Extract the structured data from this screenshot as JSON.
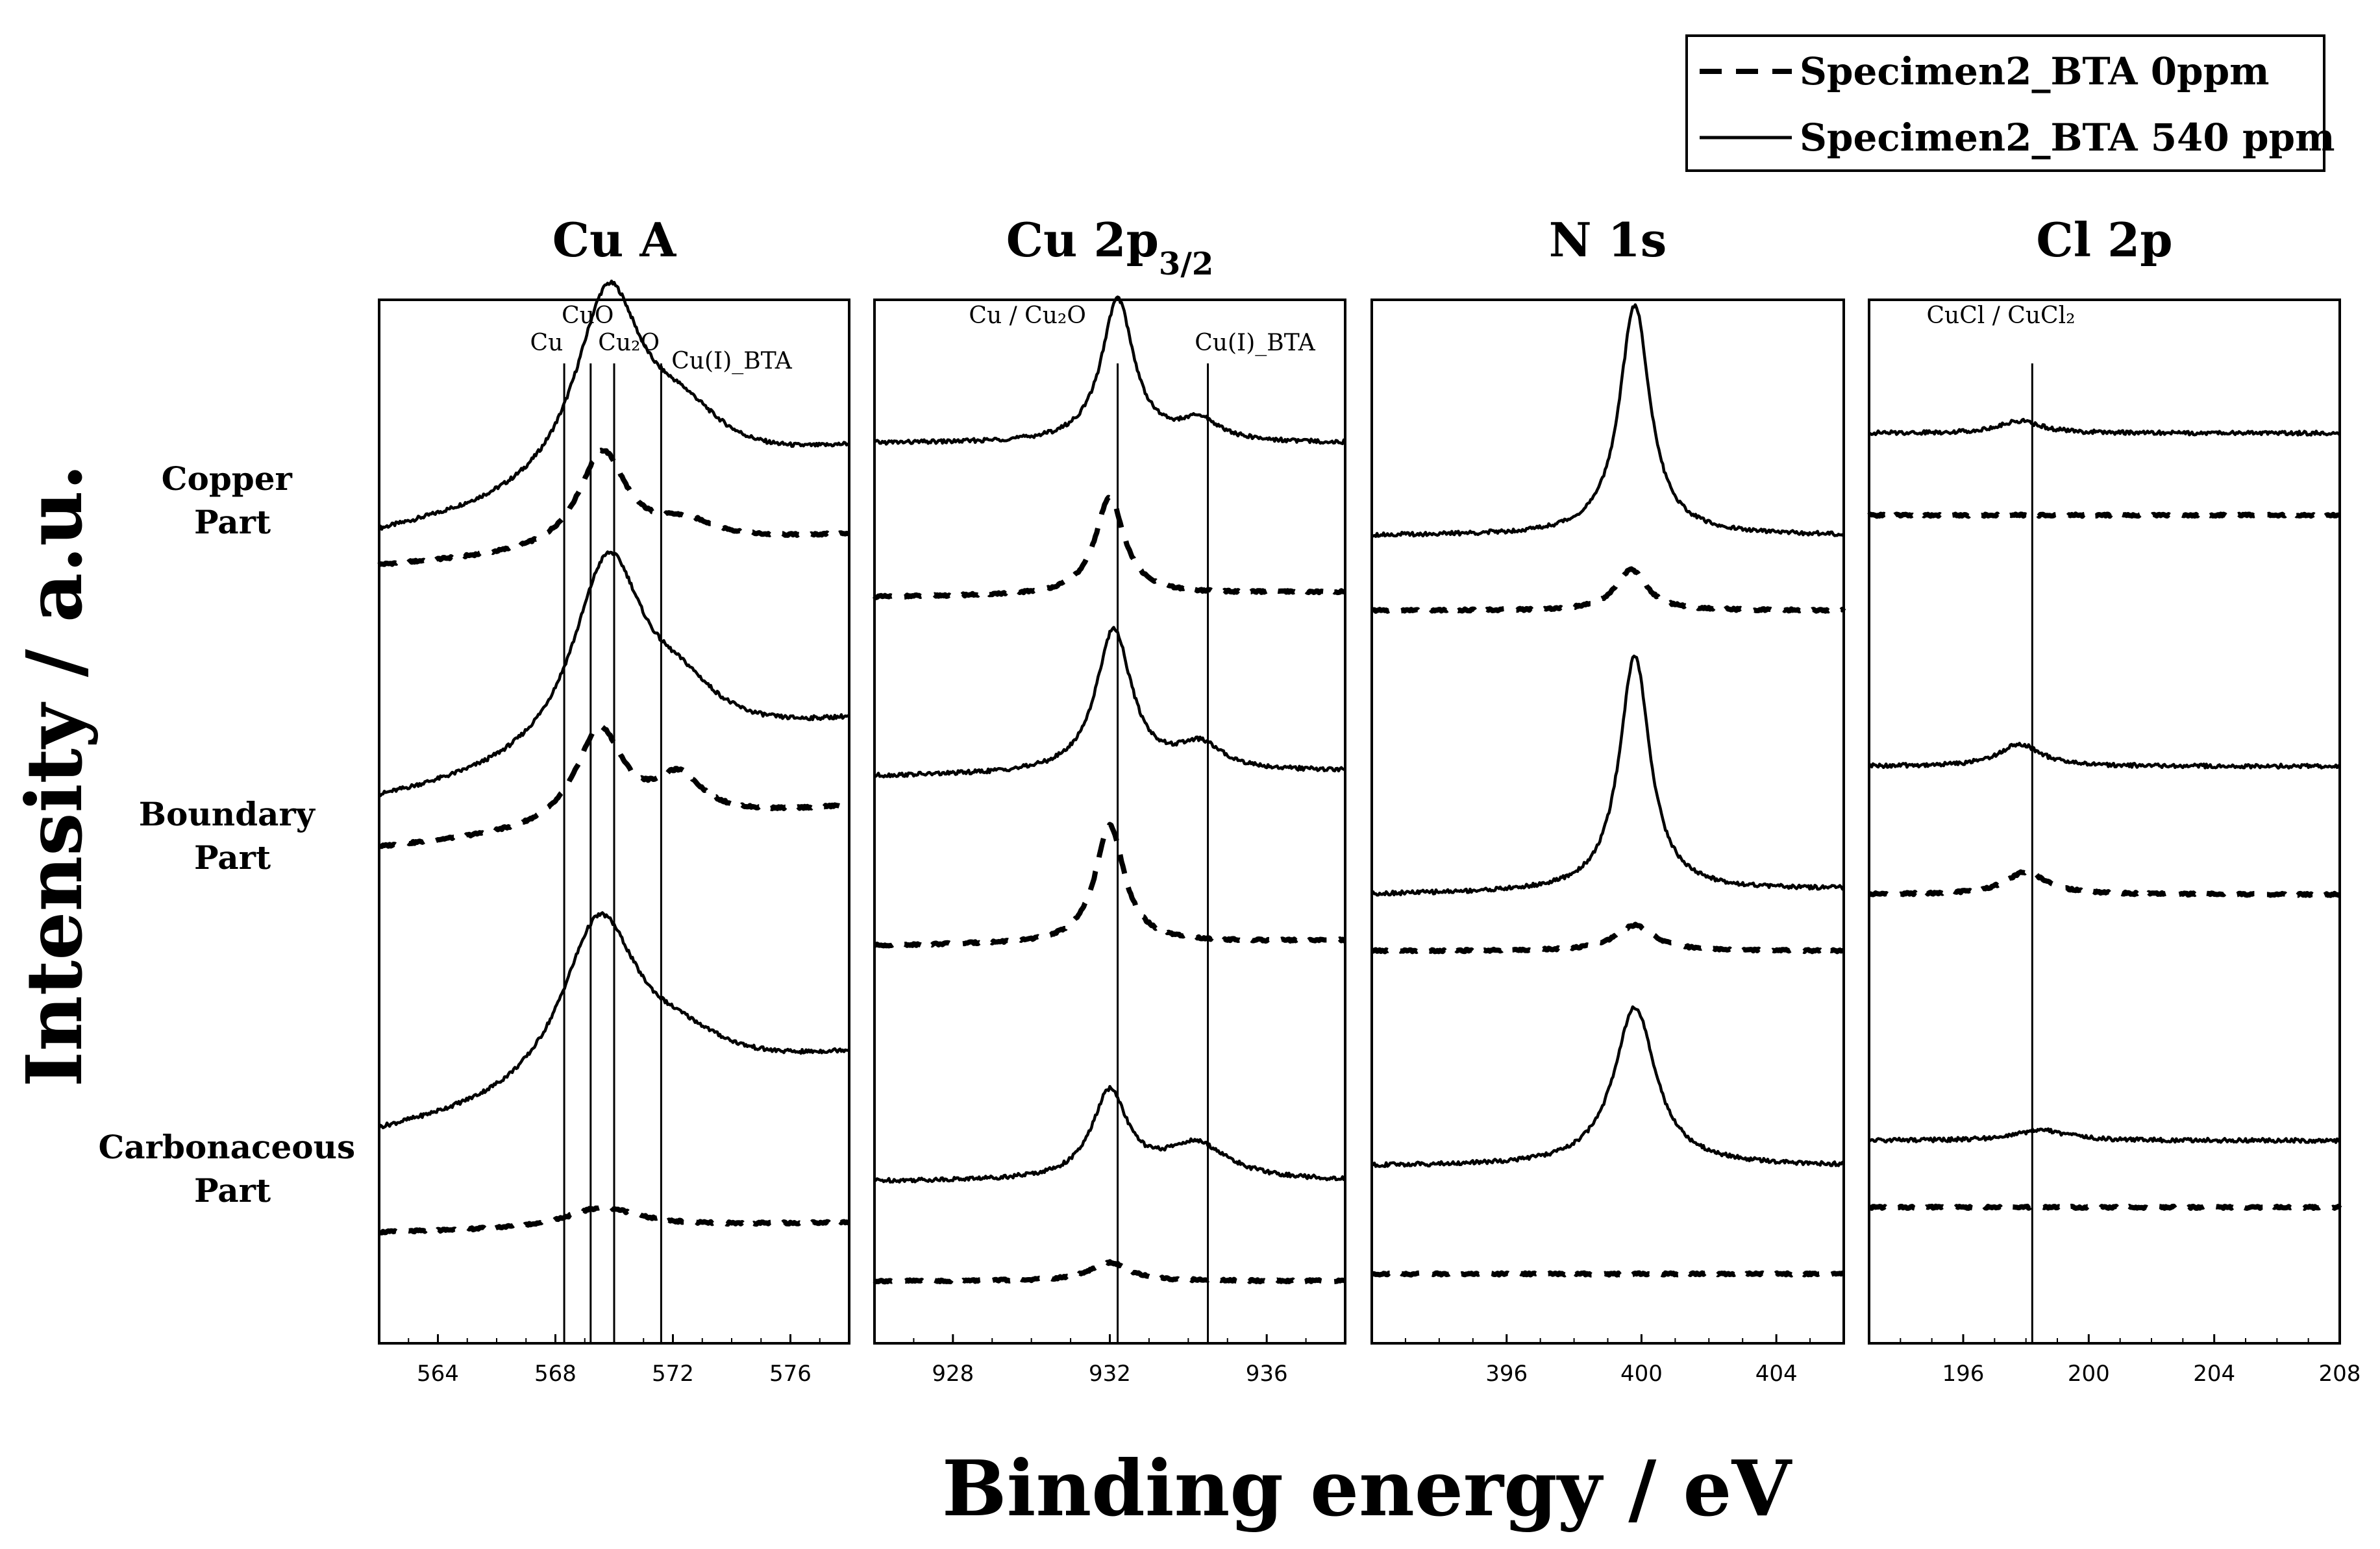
{
  "chart_data": {
    "type": "line",
    "title": "",
    "ylabel": "Intensity / a.u.",
    "xlabel": "Binding energy / eV",
    "legend": {
      "placement": "top-right",
      "entries": [
        {
          "name": "Specimen2_BTA 0ppm",
          "style": "dashed"
        },
        {
          "name": "Specimen2_BTA 540 ppm",
          "style": "solid"
        }
      ]
    },
    "rows": [
      {
        "label_line1": "Copper",
        "label_line2": "Part"
      },
      {
        "label_line1": "Boundary",
        "label_line2": "Part"
      },
      {
        "label_line1": "Carbonaceous",
        "label_line2": "Part"
      }
    ],
    "panels": [
      {
        "title_main": "Cu A",
        "title_sub": "",
        "xlim": [
          562,
          578
        ],
        "ticks": [
          564,
          568,
          572,
          576
        ],
        "ref_lines": [
          568.3,
          569.2,
          570.0,
          571.6
        ],
        "ref_labels": [
          {
            "text": "Cu",
            "x": 567.7,
            "tier": 2
          },
          {
            "text": "CuO",
            "x": 569.1,
            "tier": 1
          },
          {
            "text": "Cu₂O",
            "x": 570.5,
            "tier": 2
          },
          {
            "text": "Cu(I)_BTA",
            "x": 574.0,
            "tier": 3
          }
        ],
        "series": [
          {
            "row": 0,
            "style": "solid",
            "baseline": 0.775,
            "bg_end": 0.855,
            "peaks": [
              {
                "center": 569.8,
                "height": 0.19,
                "width": 1.4
              },
              {
                "center": 572.3,
                "height": 0.05,
                "width": 1.8
              }
            ]
          },
          {
            "row": 0,
            "style": "dashed",
            "baseline": 0.745,
            "bg_end": 0.775,
            "peaks": [
              {
                "center": 569.6,
                "height": 0.095,
                "width": 1.0
              },
              {
                "center": 572.4,
                "height": 0.02,
                "width": 1.4
              }
            ]
          },
          {
            "row": 1,
            "style": "solid",
            "baseline": 0.515,
            "bg_end": 0.59,
            "peaks": [
              {
                "center": 569.8,
                "height": 0.195,
                "width": 1.5
              },
              {
                "center": 572.3,
                "height": 0.04,
                "width": 1.6
              }
            ]
          },
          {
            "row": 1,
            "style": "dashed",
            "baseline": 0.47,
            "bg_end": 0.51,
            "peaks": [
              {
                "center": 569.5,
                "height": 0.095,
                "width": 1.0
              },
              {
                "center": 572.2,
                "height": 0.04,
                "width": 1.0
              }
            ]
          },
          {
            "row": 2,
            "style": "solid",
            "baseline": 0.19,
            "bg_end": 0.265,
            "peaks": [
              {
                "center": 569.5,
                "height": 0.17,
                "width": 1.6
              },
              {
                "center": 572.3,
                "height": 0.03,
                "width": 2.0
              }
            ]
          },
          {
            "row": 2,
            "style": "dashed",
            "baseline": 0.095,
            "bg_end": 0.105,
            "peaks": [
              {
                "center": 569.6,
                "height": 0.02,
                "width": 1.5
              }
            ]
          }
        ]
      },
      {
        "title_main": "Cu 2p",
        "title_sub": "3/2",
        "xlim": [
          926,
          938
        ],
        "ticks": [
          928,
          932,
          936
        ],
        "ref_lines": [
          932.2,
          934.5
        ],
        "ref_labels": [
          {
            "text": "Cu / Cu₂O",
            "x": 929.9,
            "tier": 1
          },
          {
            "text": "Cu(I)_BTA",
            "x": 935.7,
            "tier": 2
          }
        ],
        "series": [
          {
            "row": 0,
            "style": "solid",
            "baseline": 0.865,
            "bg_end": 0.865,
            "peaks": [
              {
                "center": 932.2,
                "height": 0.14,
                "width": 0.5
              },
              {
                "center": 934.3,
                "height": 0.02,
                "width": 0.6
              }
            ]
          },
          {
            "row": 0,
            "style": "dashed",
            "baseline": 0.715,
            "bg_end": 0.72,
            "peaks": [
              {
                "center": 932.0,
                "height": 0.095,
                "width": 0.45
              }
            ]
          },
          {
            "row": 1,
            "style": "solid",
            "baseline": 0.54,
            "bg_end": 0.545,
            "peaks": [
              {
                "center": 932.1,
                "height": 0.14,
                "width": 0.55
              },
              {
                "center": 934.3,
                "height": 0.025,
                "width": 0.7
              }
            ]
          },
          {
            "row": 1,
            "style": "dashed",
            "baseline": 0.375,
            "bg_end": 0.38,
            "peaks": [
              {
                "center": 932.0,
                "height": 0.115,
                "width": 0.45
              }
            ]
          },
          {
            "row": 2,
            "style": "solid",
            "baseline": 0.145,
            "bg_end": 0.145,
            "peaks": [
              {
                "center": 932.0,
                "height": 0.085,
                "width": 0.55
              },
              {
                "center": 934.2,
                "height": 0.035,
                "width": 1.0
              }
            ]
          },
          {
            "row": 2,
            "style": "dashed",
            "baseline": 0.048,
            "bg_end": 0.048,
            "peaks": [
              {
                "center": 932.0,
                "height": 0.018,
                "width": 0.6
              }
            ]
          }
        ]
      },
      {
        "title_main": "N 1s",
        "title_sub": "",
        "xlim": [
          392,
          406
        ],
        "ticks": [
          396,
          400,
          404
        ],
        "ref_lines": [],
        "ref_labels": [],
        "series": [
          {
            "row": 0,
            "style": "solid",
            "baseline": 0.775,
            "bg_end": 0.775,
            "peaks": [
              {
                "center": 399.8,
                "height": 0.225,
                "width": 0.55
              }
            ]
          },
          {
            "row": 0,
            "style": "dashed",
            "baseline": 0.702,
            "bg_end": 0.702,
            "peaks": [
              {
                "center": 399.7,
                "height": 0.04,
                "width": 0.55
              }
            ]
          },
          {
            "row": 1,
            "style": "solid",
            "baseline": 0.425,
            "bg_end": 0.43,
            "peaks": [
              {
                "center": 399.8,
                "height": 0.23,
                "width": 0.55
              }
            ]
          },
          {
            "row": 1,
            "style": "dashed",
            "baseline": 0.37,
            "bg_end": 0.37,
            "peaks": [
              {
                "center": 399.8,
                "height": 0.025,
                "width": 0.7
              }
            ]
          },
          {
            "row": 2,
            "style": "solid",
            "baseline": 0.16,
            "bg_end": 0.16,
            "peaks": [
              {
                "center": 399.8,
                "height": 0.155,
                "width": 0.75
              }
            ]
          },
          {
            "row": 2,
            "style": "dashed",
            "baseline": 0.055,
            "bg_end": 0.055,
            "peaks": []
          }
        ]
      },
      {
        "title_main": "Cl 2p",
        "title_sub": "",
        "xlim": [
          193,
          208
        ],
        "ticks": [
          196,
          200,
          204,
          208
        ],
        "ref_lines": [
          198.2
        ],
        "ref_labels": [
          {
            "text": "CuCl / CuCl₂",
            "x": 197.2,
            "tier": 1
          }
        ],
        "series": [
          {
            "row": 0,
            "style": "solid",
            "baseline": 0.875,
            "bg_end": 0.875,
            "peaks": [
              {
                "center": 197.8,
                "height": 0.012,
                "width": 0.8
              }
            ]
          },
          {
            "row": 0,
            "style": "dashed",
            "baseline": 0.795,
            "bg_end": 0.795,
            "peaks": []
          },
          {
            "row": 1,
            "style": "solid",
            "baseline": 0.55,
            "bg_end": 0.55,
            "peaks": [
              {
                "center": 197.8,
                "height": 0.022,
                "width": 0.8
              }
            ]
          },
          {
            "row": 1,
            "style": "dashed",
            "baseline": 0.425,
            "bg_end": 0.425,
            "peaks": [
              {
                "center": 198.0,
                "height": 0.022,
                "width": 0.8
              }
            ]
          },
          {
            "row": 2,
            "style": "solid",
            "baseline": 0.185,
            "bg_end": 0.185,
            "peaks": [
              {
                "center": 198.5,
                "height": 0.01,
                "width": 1.0
              }
            ]
          },
          {
            "row": 2,
            "style": "dashed",
            "baseline": 0.12,
            "bg_end": 0.12,
            "peaks": []
          }
        ]
      }
    ]
  }
}
